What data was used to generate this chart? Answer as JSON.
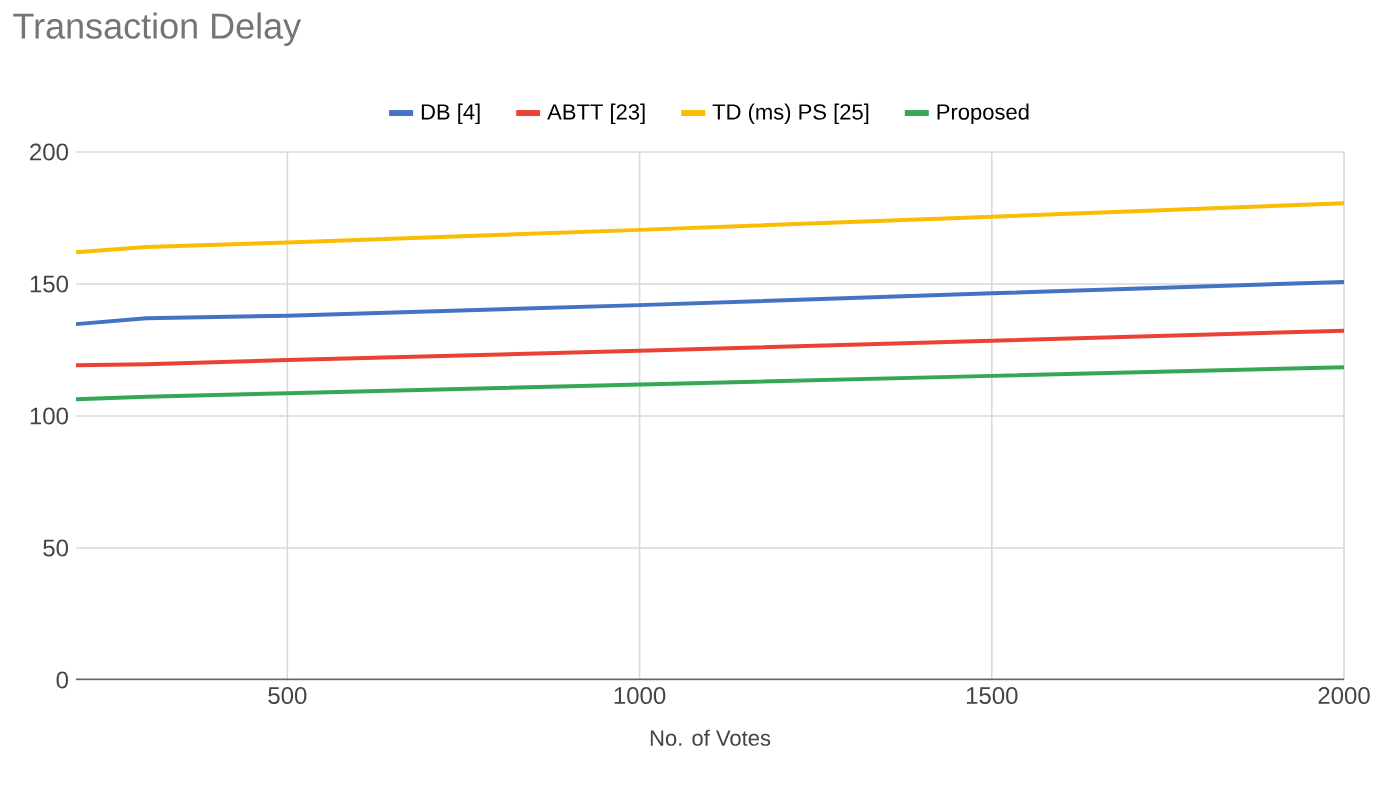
{
  "chart_data": {
    "type": "line",
    "title": "Transaction Delay",
    "xlabel": "No. of Votes",
    "x": [
      200,
      300,
      500,
      1000,
      1500,
      2000
    ],
    "series": [
      {
        "name": "DB [4]",
        "color": "#4472c4",
        "values": [
          134.8,
          137,
          138,
          142,
          146.5,
          150.8
        ]
      },
      {
        "name": "ABTT [23]",
        "color": "#ea4335",
        "values": [
          119.2,
          119.6,
          121.2,
          124.7,
          128.5,
          132.3
        ]
      },
      {
        "name": "TD (ms) PS [25]",
        "color": "#fbbc04",
        "values": [
          162,
          164,
          165.7,
          170.5,
          175.5,
          180.6
        ]
      },
      {
        "name": "Proposed",
        "color": "#34a853",
        "values": [
          106.3,
          107.3,
          108.6,
          111.9,
          115.2,
          118.5
        ]
      }
    ],
    "xlim": [
      200,
      2000
    ],
    "ylim": [
      0,
      200
    ],
    "xticks": [
      500,
      1000,
      1500,
      2000
    ],
    "yticks": [
      0,
      50,
      100,
      150,
      200
    ],
    "grid": true,
    "legend": "top",
    "marker": "none",
    "line_style": "solid"
  }
}
